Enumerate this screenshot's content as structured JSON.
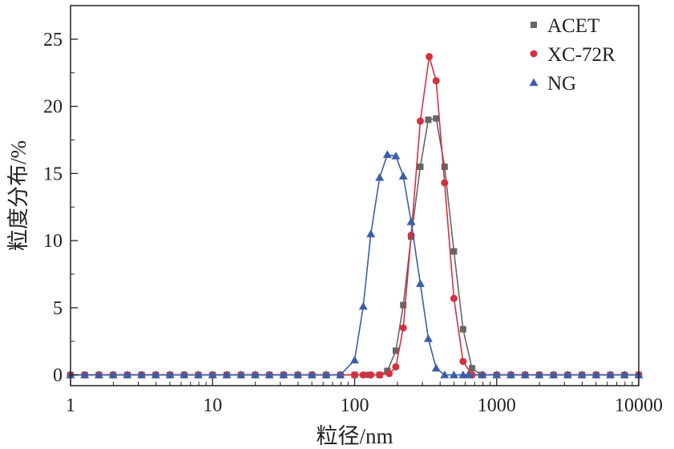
{
  "chart_data": {
    "type": "line",
    "xlabel": "粒径/nm",
    "ylabel": "粒度分布/%",
    "xscale": "log",
    "xlim": [
      1,
      10000
    ],
    "ylim": [
      -0.8,
      27.5
    ],
    "xticks": [
      1,
      10,
      100,
      1000,
      10000
    ],
    "xtick_labels": [
      "1",
      "10",
      "100",
      "1000",
      "10000"
    ],
    "yticks": [
      0,
      5,
      10,
      15,
      20,
      25
    ],
    "ytick_labels": [
      "0",
      "5",
      "10",
      "15",
      "20",
      "25"
    ],
    "grid": false,
    "legend_position": "top-right",
    "series": [
      {
        "name": "ACET",
        "color": "#666666",
        "marker": "square",
        "points": [
          [
            150,
            0
          ],
          [
            170,
            0.3
          ],
          [
            195,
            1.8
          ],
          [
            220,
            5.2
          ],
          [
            250,
            10.3
          ],
          [
            290,
            15.5
          ],
          [
            330,
            19.0
          ],
          [
            375,
            19.1
          ],
          [
            430,
            15.5
          ],
          [
            500,
            9.2
          ],
          [
            580,
            3.4
          ],
          [
            670,
            0.5
          ],
          [
            780,
            0
          ]
        ]
      },
      {
        "name": "XC-72R",
        "color": "#d6303f",
        "marker": "circle",
        "points": [
          [
            100,
            0
          ],
          [
            115,
            0
          ],
          [
            130,
            0
          ],
          [
            150,
            0
          ],
          [
            175,
            0.1
          ],
          [
            195,
            0.6
          ],
          [
            220,
            3.5
          ],
          [
            250,
            10.4
          ],
          [
            290,
            18.9
          ],
          [
            335,
            23.7
          ],
          [
            375,
            21.9
          ],
          [
            430,
            14.3
          ],
          [
            500,
            5.7
          ],
          [
            580,
            1.0
          ],
          [
            670,
            0
          ]
        ]
      },
      {
        "name": "NG",
        "color": "#3b5ea8",
        "marker": "triangle",
        "points": [
          [
            100,
            1.1
          ],
          [
            115,
            5.1
          ],
          [
            130,
            10.5
          ],
          [
            150,
            14.7
          ],
          [
            170,
            16.4
          ],
          [
            195,
            16.3
          ],
          [
            220,
            14.8
          ],
          [
            250,
            11.4
          ],
          [
            290,
            6.8
          ],
          [
            330,
            2.7
          ],
          [
            375,
            0.5
          ],
          [
            430,
            0
          ],
          [
            500,
            0
          ],
          [
            580,
            0
          ]
        ]
      }
    ],
    "baseline": {
      "x_from": 1,
      "x_to": 10000,
      "y": 0
    }
  }
}
